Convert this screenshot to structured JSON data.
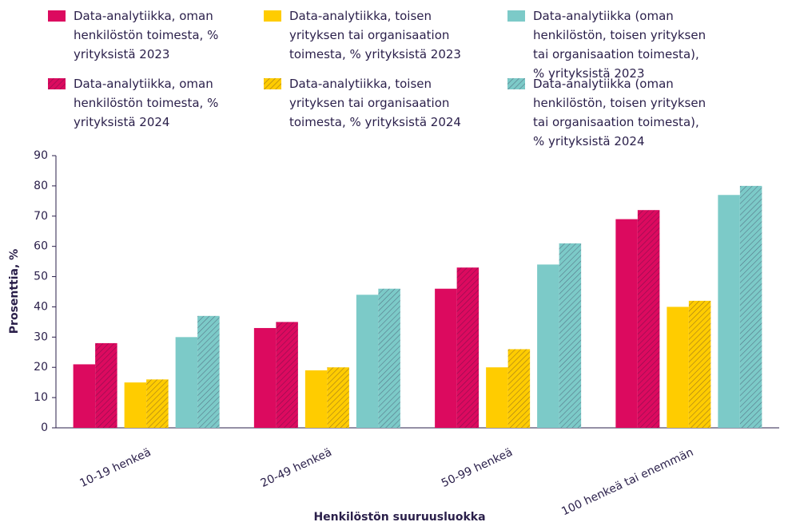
{
  "chart_data": {
    "type": "bar",
    "x_label": "Henkilöstön suuruusluokka",
    "y_label": "Prosenttia, %",
    "categories": [
      "10-19 henkeä",
      "20-49 henkeä",
      "50-99 henkeä",
      "100 henkeä tai enemmän"
    ],
    "series": [
      {
        "name": "Data-analytiikka, oman henkilöstön toimesta, % yrityksistä 2023",
        "color": "#dc0a5f",
        "hatch": false,
        "values": [
          21,
          33,
          46,
          69
        ]
      },
      {
        "name": "Data-analytiikka, toisen yrityksen tai organisaation toimesta, % yrityksistä 2023",
        "color": "#ffcc00",
        "hatch": false,
        "values": [
          15,
          19,
          20,
          40
        ]
      },
      {
        "name": "Data-analytiikka (oman henkilöstön, toisen yrityksen tai organisaation toimesta), % yrityksistä 2023",
        "color": "#7ccac8",
        "hatch": false,
        "values": [
          30,
          44,
          54,
          77
        ]
      },
      {
        "name": "Data-analytiikka, oman henkilöstön toimesta, % yrityksistä 2024",
        "color": "#dc0a5f",
        "hatch": true,
        "values": [
          28,
          35,
          53,
          72
        ]
      },
      {
        "name": "Data-analytiikka, toisen yrityksen tai organisaation toimesta, % yrityksistä 2024",
        "color": "#ffcc00",
        "hatch": true,
        "values": [
          16,
          20,
          26,
          42
        ]
      },
      {
        "name": "Data-analytiikka (oman henkilöstön, toisen yrityksen tai organisaation toimesta), % yrityksistä 2024",
        "color": "#7ccac8",
        "hatch": true,
        "values": [
          37,
          46,
          61,
          80
        ]
      }
    ],
    "ylim": [
      0,
      90
    ],
    "yticks": [
      0,
      10,
      20,
      30,
      40,
      50,
      60,
      70,
      80,
      90
    ],
    "grid": false
  }
}
